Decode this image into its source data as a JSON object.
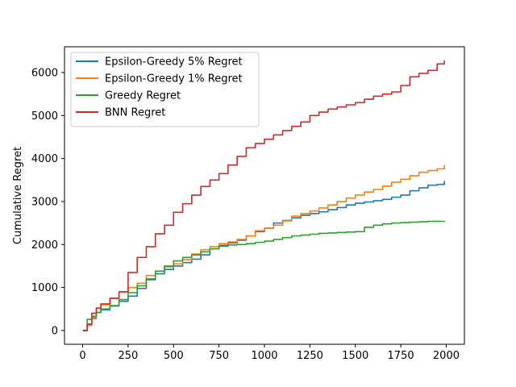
{
  "chart_data": {
    "type": "line",
    "title": "",
    "xlabel": "",
    "ylabel": "Cumulative Regret",
    "xlim": [
      -100,
      2100
    ],
    "ylim": [
      -320,
      6600
    ],
    "xticks": [
      0,
      250,
      500,
      750,
      1000,
      1250,
      1500,
      1750,
      2000
    ],
    "yticks": [
      0,
      1000,
      2000,
      3000,
      4000,
      5000,
      6000
    ],
    "grid": false,
    "legend_position": "top-left",
    "series": [
      {
        "name": "Epsilon-Greedy 5% Regret",
        "color": "#1f77b4",
        "x": [
          0,
          25,
          50,
          75,
          100,
          150,
          200,
          250,
          300,
          350,
          400,
          450,
          500,
          550,
          600,
          650,
          700,
          750,
          800,
          850,
          900,
          950,
          1000,
          1050,
          1100,
          1150,
          1200,
          1250,
          1300,
          1350,
          1400,
          1450,
          1500,
          1550,
          1600,
          1650,
          1700,
          1750,
          1800,
          1850,
          1900,
          1950,
          1990
        ],
        "values": [
          0,
          120,
          280,
          420,
          480,
          570,
          680,
          800,
          980,
          1180,
          1320,
          1420,
          1500,
          1580,
          1660,
          1760,
          1900,
          1980,
          2040,
          2100,
          2200,
          2300,
          2380,
          2500,
          2560,
          2620,
          2680,
          2720,
          2760,
          2810,
          2860,
          2920,
          2960,
          2990,
          3020,
          3050,
          3100,
          3150,
          3250,
          3320,
          3380,
          3400,
          3480
        ]
      },
      {
        "name": "Epsilon-Greedy 1% Regret",
        "color": "#ff7f0e",
        "x": [
          0,
          25,
          50,
          75,
          100,
          150,
          200,
          250,
          300,
          350,
          400,
          450,
          500,
          550,
          600,
          650,
          700,
          750,
          800,
          850,
          900,
          950,
          1000,
          1050,
          1100,
          1150,
          1200,
          1250,
          1300,
          1350,
          1400,
          1450,
          1500,
          1550,
          1600,
          1650,
          1700,
          1750,
          1800,
          1850,
          1900,
          1950,
          1990
        ],
        "values": [
          0,
          120,
          300,
          520,
          600,
          750,
          900,
          1000,
          1100,
          1280,
          1380,
          1480,
          1550,
          1650,
          1780,
          1880,
          1950,
          2020,
          2060,
          2120,
          2200,
          2320,
          2380,
          2450,
          2550,
          2660,
          2720,
          2780,
          2850,
          2920,
          3000,
          3080,
          3150,
          3220,
          3280,
          3360,
          3450,
          3520,
          3600,
          3680,
          3720,
          3760,
          3850
        ]
      },
      {
        "name": "Greedy Regret",
        "color": "#2ca02c",
        "x": [
          0,
          25,
          50,
          75,
          100,
          150,
          200,
          250,
          300,
          350,
          400,
          450,
          500,
          550,
          600,
          650,
          700,
          750,
          800,
          850,
          900,
          950,
          1000,
          1050,
          1100,
          1150,
          1200,
          1250,
          1300,
          1350,
          1400,
          1450,
          1500,
          1550,
          1600,
          1650,
          1700,
          1750,
          1800,
          1850,
          1900,
          1950,
          1990
        ],
        "values": [
          0,
          260,
          330,
          420,
          500,
          580,
          720,
          880,
          1040,
          1200,
          1380,
          1500,
          1620,
          1700,
          1760,
          1830,
          1900,
          1960,
          1990,
          2000,
          2020,
          2050,
          2080,
          2120,
          2160,
          2200,
          2220,
          2240,
          2260,
          2270,
          2280,
          2290,
          2300,
          2400,
          2450,
          2480,
          2500,
          2510,
          2520,
          2530,
          2540,
          2540,
          2550
        ]
      },
      {
        "name": "BNN Regret",
        "color": "#d62728",
        "x": [
          0,
          25,
          50,
          75,
          100,
          150,
          200,
          250,
          300,
          350,
          400,
          450,
          500,
          550,
          600,
          650,
          700,
          750,
          800,
          850,
          900,
          950,
          1000,
          1050,
          1100,
          1150,
          1200,
          1250,
          1300,
          1350,
          1400,
          1450,
          1500,
          1550,
          1600,
          1650,
          1700,
          1750,
          1800,
          1850,
          1900,
          1950,
          1990
        ],
        "values": [
          0,
          150,
          400,
          520,
          620,
          750,
          900,
          1350,
          1700,
          1950,
          2250,
          2450,
          2750,
          2950,
          3150,
          3350,
          3500,
          3650,
          3850,
          4050,
          4250,
          4350,
          4450,
          4550,
          4650,
          4750,
          4850,
          5000,
          5080,
          5150,
          5200,
          5250,
          5300,
          5380,
          5450,
          5500,
          5550,
          5700,
          5900,
          5980,
          6050,
          6200,
          6280
        ]
      }
    ]
  }
}
